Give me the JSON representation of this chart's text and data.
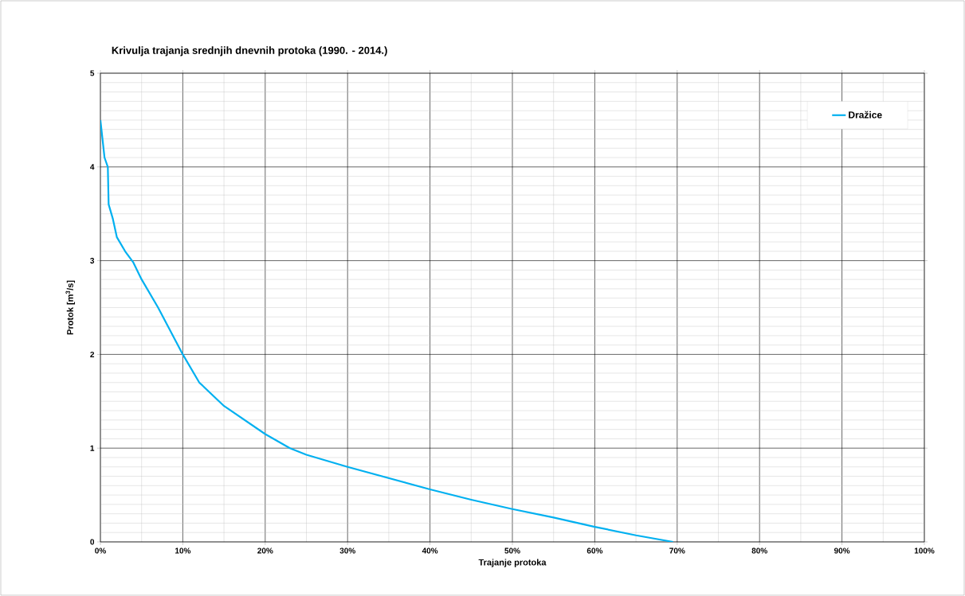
{
  "chart_data": {
    "type": "line",
    "title": "Krivulja trajanja srednjih dnevnih protoka  (1990. - 2014.)",
    "xlabel": "Trajanje protoka",
    "ylabel": "Protok  [m$^{3}$/s]",
    "xlim": [
      0,
      100
    ],
    "ylim": [
      0,
      5
    ],
    "xticks": [
      {
        "value": 0,
        "label": "0%"
      },
      {
        "value": 10,
        "label": "10%"
      },
      {
        "value": 20,
        "label": "20%"
      },
      {
        "value": 30,
        "label": "30%"
      },
      {
        "value": 40,
        "label": "40%"
      },
      {
        "value": 50,
        "label": "50%"
      },
      {
        "value": 60,
        "label": "60%"
      },
      {
        "value": 70,
        "label": "70%"
      },
      {
        "value": 80,
        "label": "80%"
      },
      {
        "value": 90,
        "label": "90%"
      },
      {
        "value": 100,
        "label": "100%"
      }
    ],
    "yticks": [
      0,
      1,
      2,
      3,
      4,
      5
    ],
    "grid": true,
    "legend": "top right",
    "marker": "none",
    "line_style": "solid",
    "series": [
      {
        "name": "Dražice",
        "color": "#00b0f0",
        "x": [
          0,
          0.5,
          0.9,
          1.0,
          1.5,
          2,
          3,
          4,
          5,
          7,
          10,
          12,
          15,
          20,
          23,
          25,
          30,
          35,
          40,
          45,
          50,
          55,
          60,
          65,
          69.5
        ],
        "values": [
          4.5,
          4.1,
          4.0,
          3.6,
          3.45,
          3.25,
          3.1,
          2.98,
          2.8,
          2.5,
          2.0,
          1.7,
          1.45,
          1.15,
          1.0,
          0.93,
          0.8,
          0.68,
          0.56,
          0.45,
          0.35,
          0.26,
          0.16,
          0.07,
          0
        ]
      }
    ]
  }
}
